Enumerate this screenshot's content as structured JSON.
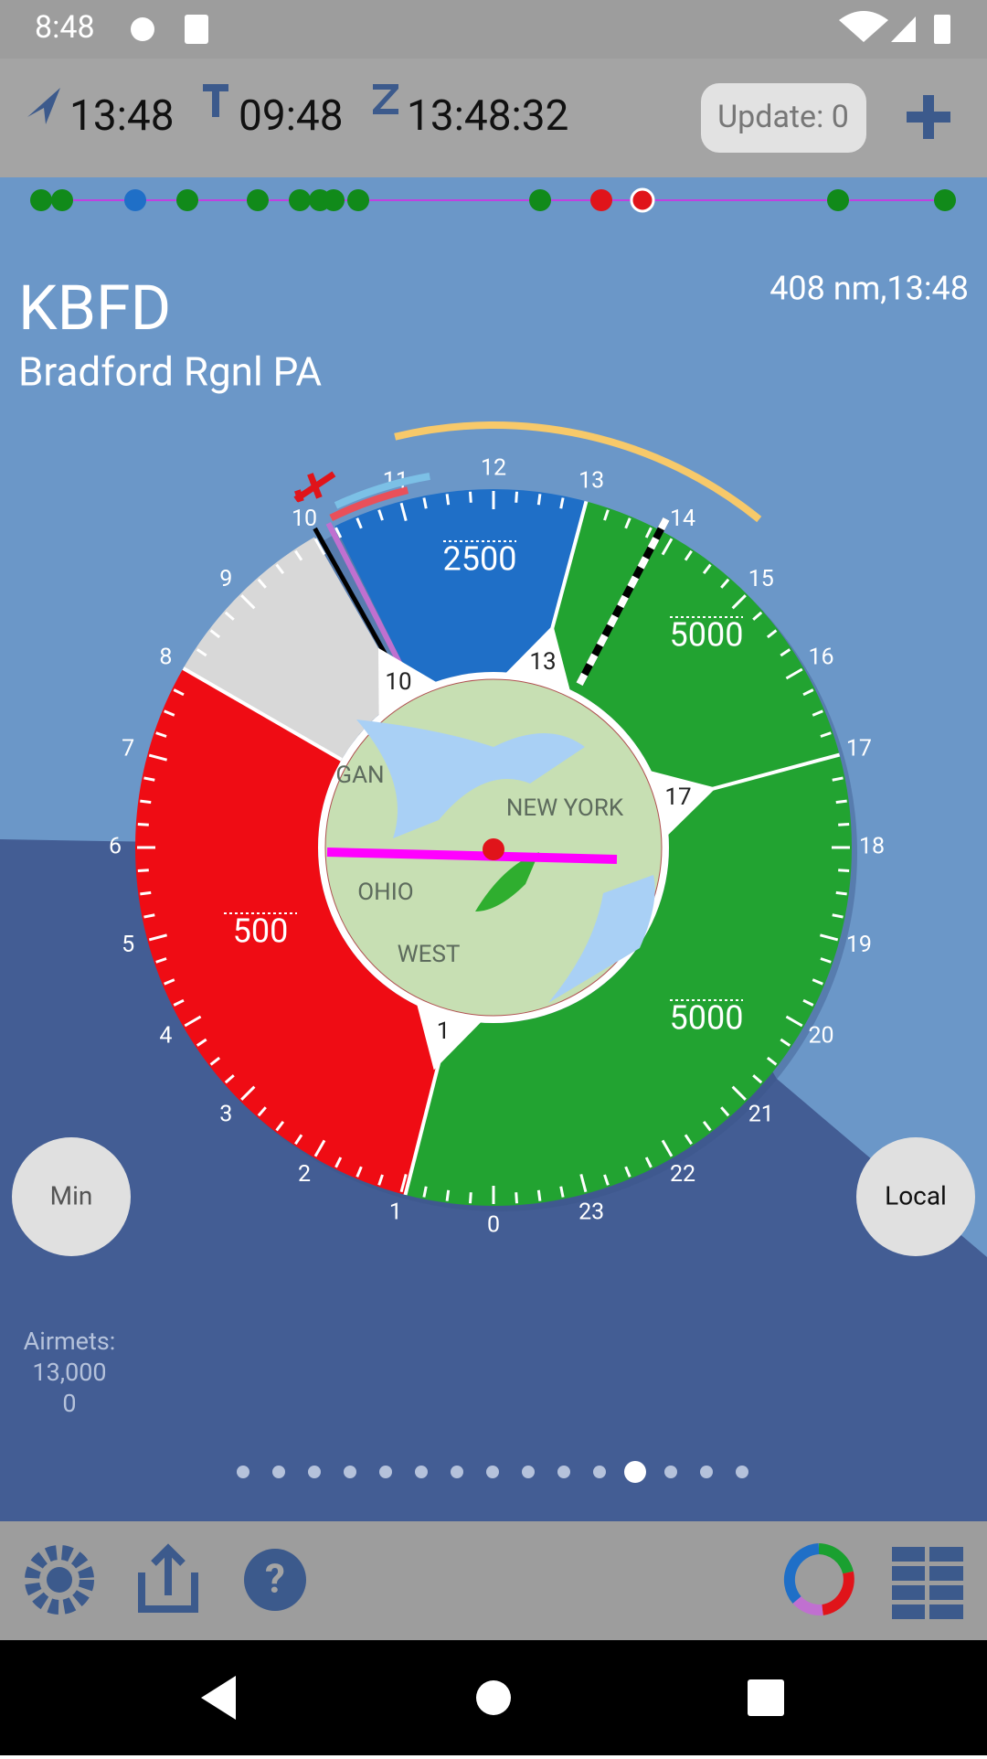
{
  "status_bar": {
    "time": "8:48"
  },
  "toolbar": {
    "local_time": "13:48",
    "tower_time": "09:48",
    "zulu_time": "13:48:32",
    "update_button": "Update: 0"
  },
  "airport": {
    "code": "KBFD",
    "name": "Bradford Rgnl PA",
    "distance": "408 nm,13:48"
  },
  "dial": {
    "hour_labels": [
      "0",
      "1",
      "2",
      "3",
      "4",
      "5",
      "6",
      "7",
      "8",
      "9",
      "10",
      "11",
      "12",
      "13",
      "14",
      "15",
      "16",
      "17",
      "18",
      "19",
      "20",
      "21",
      "22",
      "23"
    ],
    "ceiling_labels": [
      "2500",
      "5000",
      "500",
      "5000"
    ],
    "inner_labels": [
      "10",
      "13",
      "17",
      "1"
    ],
    "map_labels": [
      "GAN",
      "NEW YORK",
      "OHIO",
      "WEST"
    ]
  },
  "buttons": {
    "min": "Min",
    "local": "Local"
  },
  "airmets": [
    "Airmets:",
    "13,000",
    "0"
  ]
}
